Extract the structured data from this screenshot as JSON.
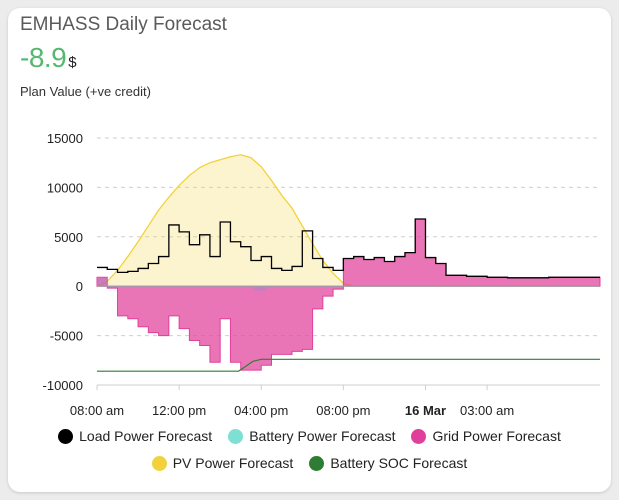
{
  "card": {
    "title": "EMHASS Daily Forecast",
    "value": "-8.9",
    "unit": "$",
    "subtitle": "Plan Value (+ve credit)"
  },
  "chart_data": {
    "type": "area",
    "y_ticks": [
      "15000",
      "10000",
      "5000",
      "0",
      "-5000",
      "-10000"
    ],
    "ylim": [
      -10000,
      15000
    ],
    "x_ticks": [
      {
        "label": "08:00 am",
        "hour": 0,
        "bold": false
      },
      {
        "label": "12:00 pm",
        "hour": 4,
        "bold": false
      },
      {
        "label": "04:00 pm",
        "hour": 8,
        "bold": false
      },
      {
        "label": "08:00 pm",
        "hour": 12,
        "bold": false
      },
      {
        "label": "16 Mar",
        "hour": 16,
        "bold": true
      },
      {
        "label": "03:00 am",
        "hour": 19,
        "bold": false
      }
    ],
    "x_range_hours": [
      0,
      24.5
    ],
    "legend": [
      {
        "name": "Load Power Forecast",
        "color": "#000000"
      },
      {
        "name": "Battery Power Forecast",
        "color": "#7de0d3"
      },
      {
        "name": "Grid Power Forecast",
        "color": "#e0409a"
      },
      {
        "name": "PV Power Forecast",
        "color": "#f2d23a"
      },
      {
        "name": "Battery SOC Forecast",
        "color": "#2e7d32"
      }
    ],
    "series": {
      "pv": [
        [
          0,
          0
        ],
        [
          0.5,
          500
        ],
        [
          1,
          1600
        ],
        [
          1.5,
          3000
        ],
        [
          2,
          4500
        ],
        [
          2.5,
          6100
        ],
        [
          3,
          7700
        ],
        [
          3.5,
          9000
        ],
        [
          4,
          10200
        ],
        [
          4.5,
          11200
        ],
        [
          5,
          12000
        ],
        [
          5.5,
          12500
        ],
        [
          6,
          12800
        ],
        [
          6.5,
          13100
        ],
        [
          7,
          13300
        ],
        [
          7.5,
          13000
        ],
        [
          8,
          12100
        ],
        [
          8.5,
          10700
        ],
        [
          9,
          9200
        ],
        [
          9.5,
          7900
        ],
        [
          10,
          6100
        ],
        [
          10.5,
          4300
        ],
        [
          11,
          2600
        ],
        [
          11.5,
          1300
        ],
        [
          12,
          300
        ],
        [
          12.5,
          0
        ],
        [
          24.5,
          0
        ]
      ],
      "load": [
        [
          0,
          1900
        ],
        [
          0.5,
          1700
        ],
        [
          1,
          1400
        ],
        [
          1.5,
          1500
        ],
        [
          2,
          1800
        ],
        [
          2.5,
          2300
        ],
        [
          3,
          3000
        ],
        [
          3.5,
          6200
        ],
        [
          4,
          5500
        ],
        [
          4.5,
          4200
        ],
        [
          5,
          5200
        ],
        [
          5.5,
          3000
        ],
        [
          6,
          6500
        ],
        [
          6.5,
          4500
        ],
        [
          7,
          4000
        ],
        [
          7.5,
          2600
        ],
        [
          8,
          3000
        ],
        [
          8.5,
          1800
        ],
        [
          9,
          1600
        ],
        [
          9.5,
          2000
        ],
        [
          10,
          5600
        ],
        [
          10.5,
          2800
        ],
        [
          11,
          1900
        ],
        [
          11.5,
          1600
        ],
        [
          12,
          2800
        ],
        [
          12.5,
          3000
        ],
        [
          13,
          2700
        ],
        [
          13.5,
          2900
        ],
        [
          14,
          2500
        ],
        [
          14.5,
          3000
        ],
        [
          15,
          3400
        ],
        [
          15.5,
          6800
        ],
        [
          16,
          2900
        ],
        [
          16.5,
          2300
        ],
        [
          17,
          1100
        ],
        [
          18,
          1000
        ],
        [
          19,
          900
        ],
        [
          20,
          850
        ],
        [
          21,
          850
        ],
        [
          22,
          900
        ],
        [
          24.5,
          900
        ]
      ],
      "grid": [
        [
          0,
          900
        ],
        [
          0.5,
          -200
        ],
        [
          1,
          -3000
        ],
        [
          1.5,
          -3300
        ],
        [
          2,
          -4100
        ],
        [
          2.5,
          -4700
        ],
        [
          3,
          -5000
        ],
        [
          3.5,
          -3000
        ],
        [
          4,
          -4300
        ],
        [
          4.5,
          -5500
        ],
        [
          5,
          -6000
        ],
        [
          5.5,
          -7700
        ],
        [
          6,
          -3300
        ],
        [
          6.5,
          -7700
        ],
        [
          7,
          -8500
        ],
        [
          7.5,
          -8500
        ],
        [
          8,
          -8000
        ],
        [
          8.5,
          -6900
        ],
        [
          9,
          -6900
        ],
        [
          9.5,
          -6600
        ],
        [
          10,
          -6400
        ],
        [
          10.5,
          -2300
        ],
        [
          11,
          -1000
        ],
        [
          11.5,
          -300
        ],
        [
          12,
          2800
        ],
        [
          12.5,
          3000
        ],
        [
          13,
          2700
        ],
        [
          13.5,
          2900
        ],
        [
          14,
          2500
        ],
        [
          14.5,
          3000
        ],
        [
          15,
          3400
        ],
        [
          15.5,
          6800
        ],
        [
          16,
          2900
        ],
        [
          16.5,
          2300
        ],
        [
          17,
          1100
        ],
        [
          18,
          1000
        ],
        [
          19,
          900
        ],
        [
          20,
          850
        ],
        [
          21,
          850
        ],
        [
          22,
          900
        ],
        [
          24.5,
          900
        ]
      ],
      "battery": [
        [
          0,
          900
        ],
        [
          0.5,
          0
        ],
        [
          7.5,
          0
        ],
        [
          7.6,
          -500
        ],
        [
          8.2,
          -500
        ],
        [
          8.3,
          0
        ],
        [
          24.5,
          0
        ]
      ],
      "soc": [
        [
          0,
          -8600
        ],
        [
          6.9,
          -8600
        ],
        [
          7.6,
          -7600
        ],
        [
          8,
          -7400
        ],
        [
          24.5,
          -7400
        ]
      ]
    }
  }
}
